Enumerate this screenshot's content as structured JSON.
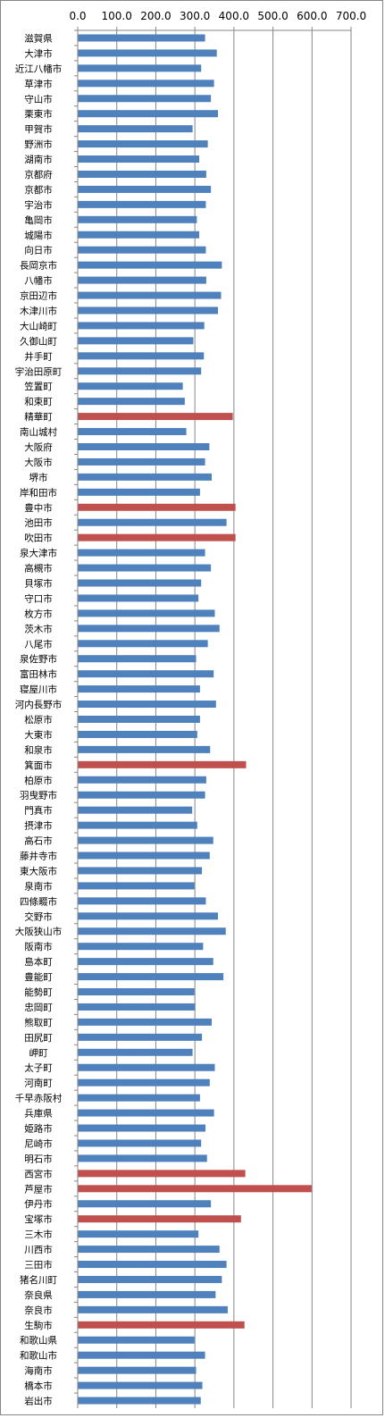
{
  "chart_data": {
    "type": "bar",
    "orientation": "horizontal",
    "xlim": [
      0,
      700
    ],
    "x_ticks": [
      "0.0",
      "100.0",
      "200.0",
      "300.0",
      "400.0",
      "500.0",
      "600.0",
      "700.0"
    ],
    "grid": "vertical",
    "legend": "none",
    "title": "",
    "xlabel": "",
    "ylabel": "",
    "colors": {
      "normal": "#4F81BD",
      "highlight": "#C0504D",
      "grid": "#868686",
      "axis": "#868686"
    },
    "categories": [
      "滋賀県",
      "大津市",
      "近江八幡市",
      "草津市",
      "守山市",
      "栗東市",
      "甲賀市",
      "野洲市",
      "湖南市",
      "京都府",
      "京都市",
      "宇治市",
      "亀岡市",
      "城陽市",
      "向日市",
      "長岡京市",
      "八幡市",
      "京田辺市",
      "木津川市",
      "大山崎町",
      "久御山町",
      "井手町",
      "宇治田原町",
      "笠置町",
      "和束町",
      "精華町",
      "南山城村",
      "大阪府",
      "大阪市",
      "堺市",
      "岸和田市",
      "豊中市",
      "池田市",
      "吹田市",
      "泉大津市",
      "高槻市",
      "貝塚市",
      "守口市",
      "枚方市",
      "茨木市",
      "八尾市",
      "泉佐野市",
      "富田林市",
      "寝屋川市",
      "河内長野市",
      "松原市",
      "大東市",
      "和泉市",
      "箕面市",
      "柏原市",
      "羽曳野市",
      "門真市",
      "摂津市",
      "高石市",
      "藤井寺市",
      "東大阪市",
      "泉南市",
      "四條畷市",
      "交野市",
      "大阪狭山市",
      "阪南市",
      "島本町",
      "豊能町",
      "能勢町",
      "忠岡町",
      "熊取町",
      "田尻町",
      "岬町",
      "太子町",
      "河南町",
      "千早赤阪村",
      "兵庫県",
      "姫路市",
      "尼崎市",
      "明石市",
      "西宮市",
      "芦屋市",
      "伊丹市",
      "宝塚市",
      "三木市",
      "川西市",
      "三田市",
      "猪名川町",
      "奈良県",
      "奈良市",
      "生駒市",
      "和歌山県",
      "和歌山市",
      "海南市",
      "橋本市",
      "岩出市"
    ],
    "values": [
      325,
      355,
      315,
      348,
      340,
      358,
      293,
      332,
      310,
      328,
      340,
      327,
      304,
      310,
      327,
      368,
      328,
      366,
      358,
      323,
      295,
      322,
      315,
      268,
      273,
      396,
      277,
      336,
      325,
      342,
      312,
      403,
      380,
      403,
      325,
      340,
      315,
      308,
      350,
      362,
      332,
      302,
      347,
      312,
      353,
      312,
      305,
      338,
      430,
      328,
      325,
      292,
      305,
      346,
      337,
      317,
      298,
      327,
      358,
      378,
      320,
      346,
      372,
      298,
      300,
      342,
      317,
      293,
      350,
      337,
      312,
      348,
      326,
      315,
      330,
      428,
      598,
      340,
      417,
      308,
      362,
      380,
      368,
      352,
      383,
      426,
      298,
      325,
      302,
      318,
      314
    ],
    "highlighted": [
      "精華町",
      "豊中市",
      "吹田市",
      "箕面市",
      "西宮市",
      "芦屋市",
      "宝塚市",
      "生駒市"
    ]
  }
}
